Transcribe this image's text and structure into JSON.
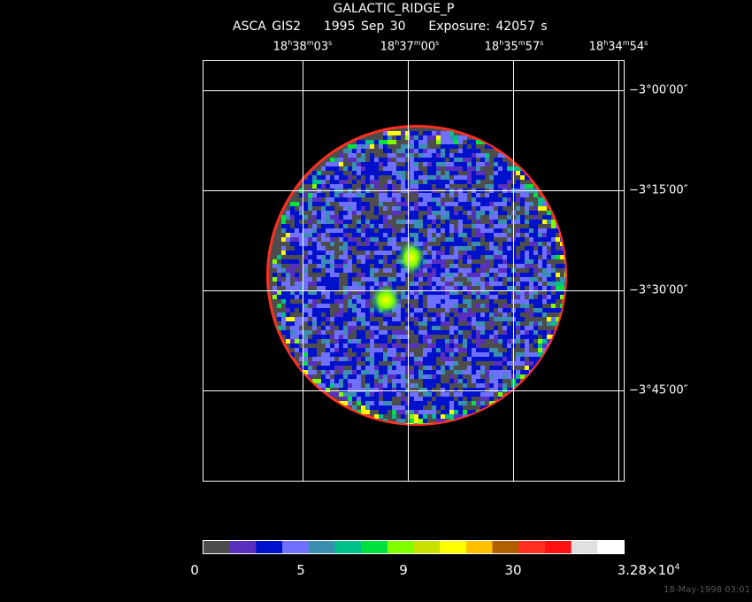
{
  "header": {
    "object": "GALACTIC_RIDGE_P",
    "instrument": "ASCA GIS2",
    "date": "1995 Sep 30",
    "exposure_label": "Exposure:",
    "exposure_value": "42057 s"
  },
  "ra_ticks": [
    {
      "h": "18",
      "m": "38",
      "s": "03"
    },
    {
      "h": "18",
      "m": "37",
      "s": "00"
    },
    {
      "h": "18",
      "m": "35",
      "s": "57"
    },
    {
      "h": "18",
      "m": "34",
      "s": "54"
    }
  ],
  "dec_ticks": [
    "−3°00′00″",
    "−3°15′00″",
    "−3°30′00″",
    "−3°45′00″"
  ],
  "colorbar": {
    "colors": [
      "#4d4d4d",
      "#5a2fc0",
      "#0011cc",
      "#7070ff",
      "#3a8fb0",
      "#00c08a",
      "#00e040",
      "#80ff00",
      "#c8e000",
      "#ffff00",
      "#ffc000",
      "#b06000",
      "#ff3020",
      "#ff1010",
      "#e0e0e0",
      "#ffffff"
    ],
    "labels": [
      "0",
      "5",
      "9",
      "30"
    ],
    "max_label_mantissa": "3.28×10",
    "max_label_exp": "4"
  },
  "footer": "18-May-1998 03:01"
}
